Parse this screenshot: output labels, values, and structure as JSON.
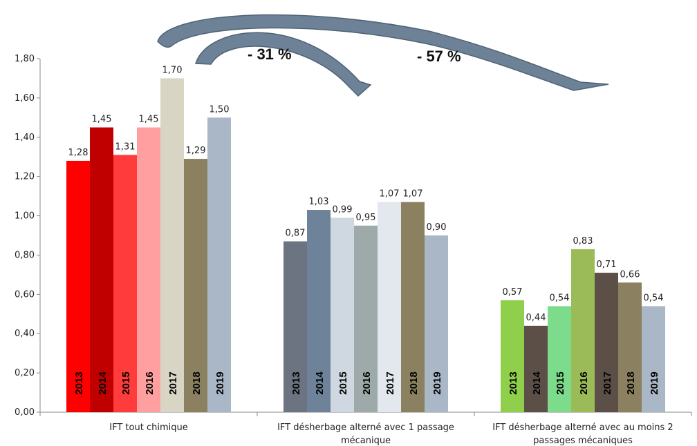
{
  "chart_data": {
    "type": "bar",
    "ylim": [
      0,
      1.8
    ],
    "ytick_step": 0.2,
    "grid": false,
    "legend": "none",
    "categories": [
      "IFT tout chimique",
      "IFT désherbage alterné avec 1 passage mécanique",
      "IFT désherbage alterné avec au moins 2 passages mécaniques"
    ],
    "category_lines": [
      [
        "IFT tout chimique"
      ],
      [
        "IFT désherbage alterné avec 1 passage",
        "mécanique"
      ],
      [
        "IFT désherbage alterné avec au moins 2",
        "passages mécaniques"
      ]
    ],
    "series": [
      {
        "name": "2013",
        "values": [
          1.28,
          0.87,
          0.57
        ]
      },
      {
        "name": "2014",
        "values": [
          1.45,
          1.03,
          0.44
        ]
      },
      {
        "name": "2015",
        "values": [
          1.31,
          0.99,
          0.54
        ]
      },
      {
        "name": "2016",
        "values": [
          1.45,
          0.95,
          0.83
        ]
      },
      {
        "name": "2017",
        "values": [
          1.7,
          1.07,
          0.71
        ]
      },
      {
        "name": "2018",
        "values": [
          1.29,
          1.07,
          0.66
        ]
      },
      {
        "name": "2019",
        "values": [
          1.5,
          0.9,
          0.54
        ]
      }
    ],
    "value_labels": [
      [
        "1,28",
        "1,45",
        "1,31",
        "1,45",
        "1,70",
        "1,29",
        "1,50"
      ],
      [
        "0,87",
        "1,03",
        "0,99",
        "0,95",
        "1,07",
        "1,07",
        "0,90"
      ],
      [
        "0,57",
        "0,44",
        "0,54",
        "0,83",
        "0,71",
        "0,66",
        "0,54"
      ]
    ],
    "ytick_labels": [
      "0,00",
      "0,20",
      "0,40",
      "0,60",
      "0,80",
      "1,00",
      "1,20",
      "1,40",
      "1,60",
      "1,80"
    ],
    "colors": [
      [
        "#ff0000",
        "#c00000",
        "#ff3b3b",
        "#ff9f9f",
        "#d9d5c5",
        "#8b8160",
        "#a9b7c6"
      ],
      [
        "#6b7480",
        "#6e8299",
        "#cfd8e0",
        "#9ea9a9",
        "#e2e8ed",
        "#8b8160",
        "#a9b7c6"
      ],
      [
        "#8fcf4b",
        "#5c4f48",
        "#7ddc8c",
        "#9bbb59",
        "#5c4f48",
        "#8b8160",
        "#a9b7c6"
      ]
    ],
    "annotations": [
      "- 31 %",
      "- 57 %"
    ],
    "arrow_color": "#6d8296"
  }
}
